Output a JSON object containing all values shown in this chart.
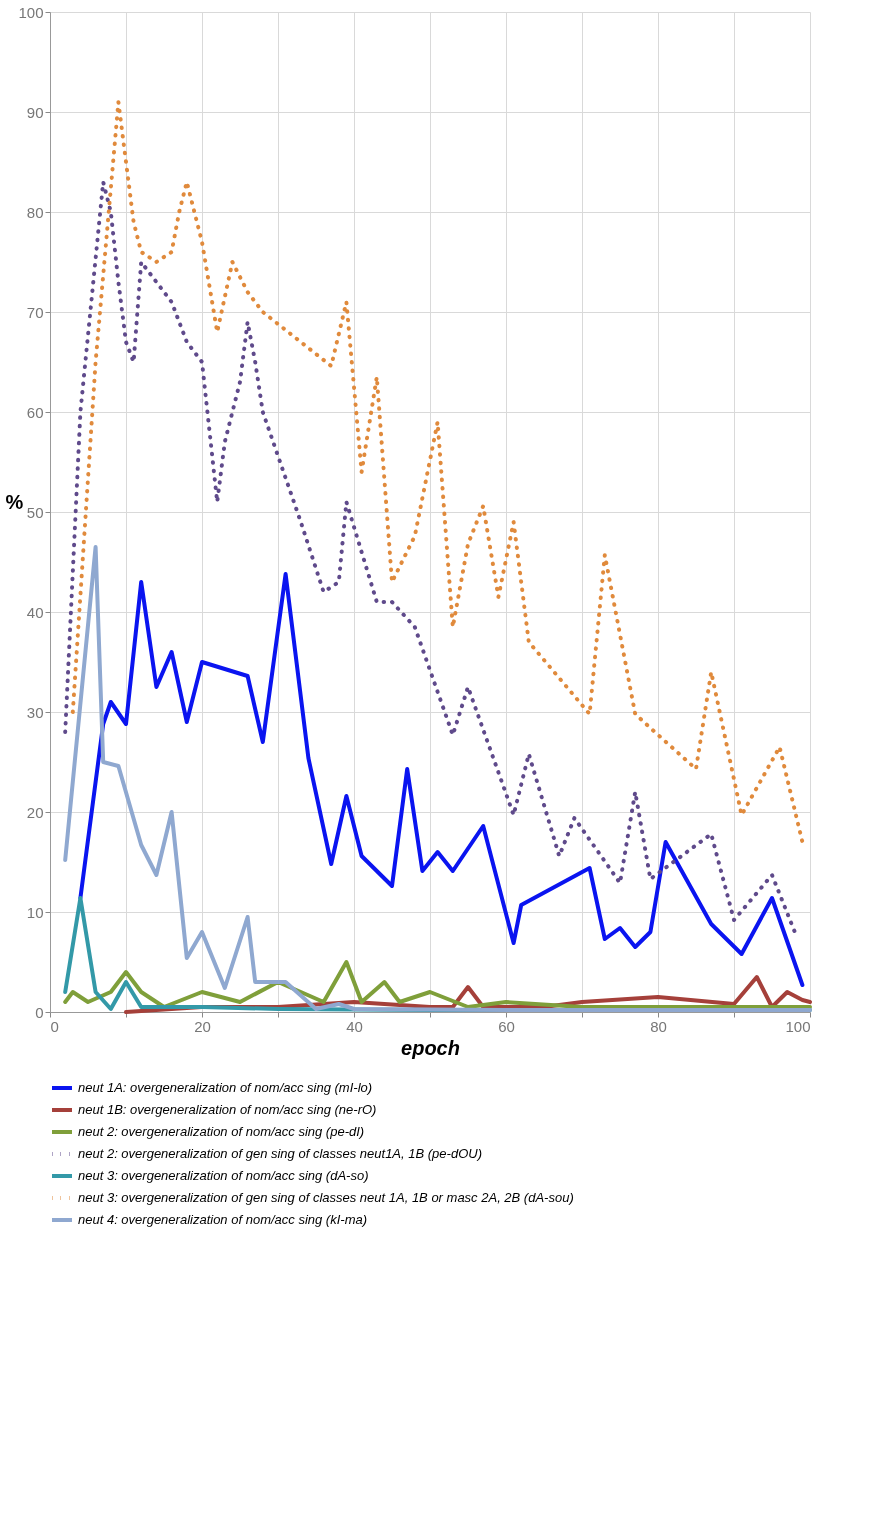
{
  "chart_data": {
    "type": "line",
    "xlabel": "epoch",
    "ylabel": "%",
    "xlim": [
      0,
      100
    ],
    "ylim": [
      0,
      100
    ],
    "xticks": [
      0,
      {
        "value": 10,
        "label": null
      },
      20,
      {
        "value": 30,
        "label": null
      },
      40,
      {
        "value": 50,
        "label": null
      },
      60,
      {
        "value": 70,
        "label": null
      },
      80,
      {
        "value": 90,
        "label": null
      },
      100
    ],
    "yticks": [
      0,
      10,
      20,
      30,
      40,
      50,
      60,
      70,
      80,
      90,
      100
    ],
    "grid": true,
    "legend": "bottom",
    "marker": "none",
    "series": [
      {
        "name": "neut 1A: overgeneralization of nom/acc sing (mI-lo)",
        "color": "#0a14f0",
        "line_style": "solid",
        "x": [
          4,
          7,
          8,
          10,
          12,
          14,
          16,
          18,
          20,
          26,
          28,
          31,
          34,
          37,
          39,
          41,
          45,
          47,
          49,
          51,
          53,
          57,
          61,
          62,
          71,
          73,
          75,
          77,
          79,
          81,
          87,
          91,
          95,
          99
        ],
        "values": [
          11.4,
          28.8,
          31,
          28.8,
          43,
          32.5,
          36,
          29,
          35,
          33.6,
          27,
          43.8,
          25.4,
          14.8,
          21.6,
          15.6,
          12.6,
          24.3,
          14.1,
          16,
          14.1,
          18.6,
          6.9,
          10.7,
          14.4,
          7.3,
          8.4,
          6.5,
          8,
          17,
          8.8,
          5.8,
          11.4,
          2.7
        ]
      },
      {
        "name": "neut 1B: overgeneralization of nom/acc sing (ne-rO)",
        "color": "#a5403a",
        "line_style": "solid",
        "x": [
          10,
          20,
          30,
          40,
          50,
          53,
          55,
          57,
          65,
          70,
          80,
          90,
          93,
          95,
          97,
          99,
          100
        ],
        "values": [
          0,
          0.5,
          0.5,
          1,
          0.5,
          0.5,
          2.5,
          0.5,
          0.5,
          1,
          1.5,
          0.8,
          3.5,
          0.5,
          2,
          1.2,
          1
        ]
      },
      {
        "name": "neut 2: overgeneralization of nom/acc sing (pe-dI)",
        "color": "#7f9f3a",
        "line_style": "solid",
        "x": [
          2,
          3,
          5,
          8,
          10,
          12,
          15,
          20,
          25,
          30,
          33,
          36,
          39,
          41,
          44,
          46,
          50,
          55,
          60,
          70,
          100
        ],
        "values": [
          1,
          2,
          1,
          2,
          4,
          2,
          0.5,
          2,
          1,
          3,
          2,
          1,
          5,
          1,
          3,
          1,
          2,
          0.5,
          1,
          0.5,
          0.5
        ]
      },
      {
        "name": "neut 2: overgeneralization of gen sing of classes neut1A, 1B (pe-dOU)",
        "color": "#5f4a8b",
        "line_style": "dotted",
        "x": [
          2,
          4,
          7,
          8,
          9,
          10,
          11,
          12,
          14,
          16,
          18,
          20,
          21,
          22,
          23,
          25,
          26,
          27,
          28,
          33,
          36,
          38,
          39,
          43,
          45,
          48,
          53,
          55,
          61,
          63,
          67,
          69,
          75,
          77,
          79,
          87,
          90,
          95,
          98
        ],
        "values": [
          28,
          60,
          83,
          80,
          73,
          67,
          65,
          75,
          73,
          71,
          67,
          65,
          58,
          51,
          57,
          63,
          69,
          65,
          60,
          49,
          42,
          43,
          51,
          41,
          41,
          38.5,
          27.7,
          32.5,
          19.7,
          25.8,
          15.6,
          19.4,
          12.9,
          22,
          13.3,
          17.8,
          9.2,
          13.7,
          8
        ]
      },
      {
        "name": "neut 3: overgeneralization of nom/acc sing (dA-so)",
        "color": "#3399a8",
        "line_style": "solid",
        "x": [
          2,
          4,
          6,
          8,
          10,
          12,
          20,
          30,
          50,
          100
        ],
        "values": [
          2,
          11.4,
          2,
          0.3,
          3,
          0.5,
          0.5,
          0.3,
          0.2,
          0.2
        ]
      },
      {
        "name": "neut 3: overgeneralization of gen sing of classes neut 1A, 1B or masc 2A, 2B (dA-sou)",
        "color": "#e08a3c",
        "line_style": "dotted",
        "x": [
          3,
          6,
          9,
          10,
          11,
          12,
          14,
          16,
          17,
          18,
          19,
          20,
          22,
          24,
          26,
          28,
          37,
          39,
          41,
          43,
          45,
          48,
          51,
          53,
          55,
          57,
          59,
          61,
          63,
          71,
          73,
          77,
          79,
          85,
          87,
          91,
          96,
          99
        ],
        "values": [
          30,
          65,
          91,
          85,
          79,
          76,
          75,
          76,
          80,
          83,
          80,
          77,
          68,
          75,
          72,
          70,
          64.6,
          71,
          54,
          63.5,
          43,
          47.6,
          59,
          38.5,
          46.8,
          50.6,
          41.5,
          49,
          37,
          29.8,
          45.7,
          29.8,
          28.4,
          24.3,
          34,
          19.7,
          26.5,
          17
        ]
      },
      {
        "name": "neut 4: overgeneralization of nom/acc sing (kI-ma)",
        "color": "#8fa8d0",
        "line_style": "solid",
        "x": [
          2,
          6,
          7,
          9,
          12,
          14,
          16,
          18,
          20,
          23,
          26,
          27,
          31,
          35,
          38,
          40,
          60,
          100
        ],
        "values": [
          15.2,
          46.5,
          25,
          24.6,
          16.7,
          13.7,
          20,
          5.4,
          8,
          2.4,
          9.5,
          3,
          3,
          0.3,
          0.8,
          0.3,
          0.2,
          0.2
        ]
      }
    ]
  }
}
